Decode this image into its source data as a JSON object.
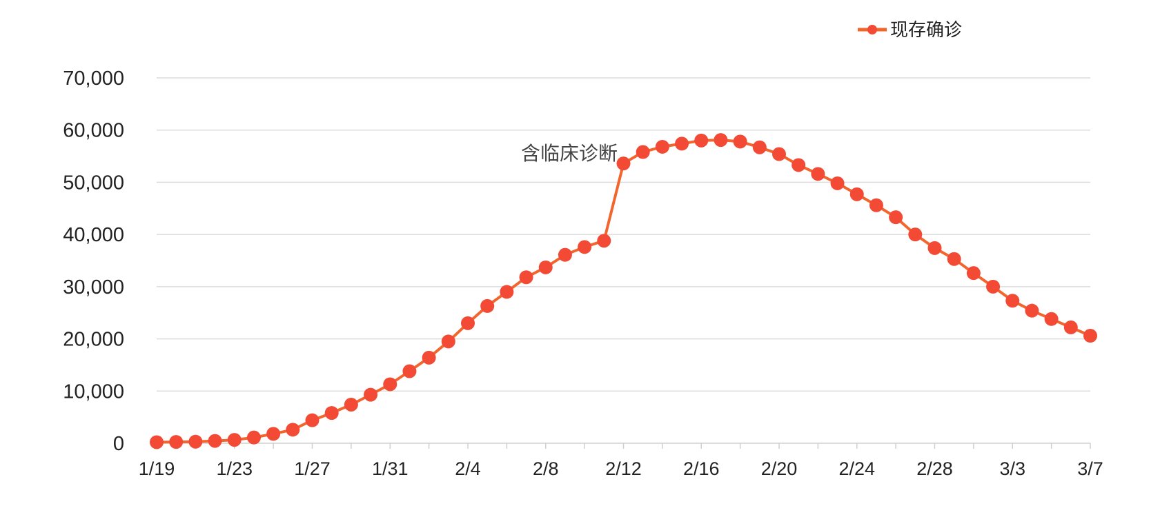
{
  "chart_data": {
    "type": "line",
    "title": "",
    "xlabel": "",
    "ylabel": "",
    "ylim": [
      0,
      70000
    ],
    "y_ticks": [
      "0",
      "10,000",
      "20,000",
      "30,000",
      "40,000",
      "50,000",
      "60,000",
      "70,000"
    ],
    "x_ticks": [
      "1/19",
      "1/23",
      "1/27",
      "1/31",
      "2/4",
      "2/8",
      "2/12",
      "2/16",
      "2/20",
      "2/24",
      "2/28",
      "3/3",
      "3/7"
    ],
    "grid": true,
    "legend_position": "top-right",
    "annotation": {
      "text": "含临床诊断",
      "at": "2/12"
    },
    "x": [
      "1/19",
      "1/20",
      "1/21",
      "1/22",
      "1/23",
      "1/24",
      "1/25",
      "1/26",
      "1/27",
      "1/28",
      "1/29",
      "1/30",
      "1/31",
      "2/1",
      "2/2",
      "2/3",
      "2/4",
      "2/5",
      "2/6",
      "2/7",
      "2/8",
      "2/9",
      "2/10",
      "2/11",
      "2/12",
      "2/13",
      "2/14",
      "2/15",
      "2/16",
      "2/17",
      "2/18",
      "2/19",
      "2/20",
      "2/21",
      "2/22",
      "2/23",
      "2/24",
      "2/25",
      "2/26",
      "2/27",
      "2/28",
      "2/29",
      "3/1",
      "3/2",
      "3/3",
      "3/4",
      "3/5",
      "3/6",
      "3/7"
    ],
    "series": [
      {
        "name": "现存确诊",
        "color": "#f2662e",
        "marker_color": "#f24a35",
        "values": [
          200,
          250,
          300,
          450,
          650,
          1100,
          1800,
          2600,
          4400,
          5800,
          7400,
          9300,
          11300,
          13800,
          16400,
          19500,
          23000,
          26300,
          29000,
          31800,
          33700,
          36100,
          37600,
          38800,
          53600,
          55800,
          56800,
          57400,
          58000,
          58100,
          57800,
          56700,
          55400,
          53300,
          51600,
          49800,
          47700,
          45600,
          43300,
          40000,
          37400,
          35300,
          32600,
          30000,
          27300,
          25400,
          23800,
          22200,
          20600
        ]
      }
    ]
  }
}
